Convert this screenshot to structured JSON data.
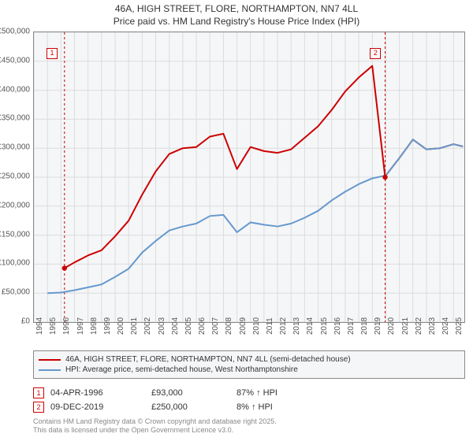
{
  "title": {
    "line1": "46A, HIGH STREET, FLORE, NORTHAMPTON, NN7 4LL",
    "line2": "Price paid vs. HM Land Registry's House Price Index (HPI)"
  },
  "chart": {
    "type": "line",
    "background_color": "#f5f6f8",
    "border_color": "#888888",
    "grid_color": "#dcdcdc",
    "y": {
      "min": 0,
      "max": 500000,
      "step": 50000,
      "tick_labels": [
        "£0",
        "£50,000",
        "£100,000",
        "£150,000",
        "£200,000",
        "£250,000",
        "£300,000",
        "£350,000",
        "£400,000",
        "£450,000",
        "£500,000"
      ],
      "label_fontsize": 10,
      "label_color": "#555555"
    },
    "x": {
      "min": 1994,
      "max": 2025.8,
      "years": [
        1994,
        1995,
        1996,
        1997,
        1998,
        1999,
        2000,
        2001,
        2002,
        2003,
        2004,
        2005,
        2006,
        2007,
        2008,
        2009,
        2010,
        2011,
        2012,
        2013,
        2014,
        2015,
        2016,
        2017,
        2018,
        2019,
        2020,
        2021,
        2022,
        2023,
        2024,
        2025
      ],
      "label_fontsize": 10,
      "label_color": "#555555"
    },
    "series": [
      {
        "name": "property",
        "label": "46A, HIGH STREET, FLORE, NORTHAMPTON, NN7 4LL (semi-detached house)",
        "color": "#cc0000",
        "line_width": 2,
        "data": [
          [
            1996.26,
            93000
          ],
          [
            1997,
            103000
          ],
          [
            1998,
            115000
          ],
          [
            1999,
            124000
          ],
          [
            2000,
            148000
          ],
          [
            2001,
            175000
          ],
          [
            2002,
            220000
          ],
          [
            2003,
            260000
          ],
          [
            2004,
            290000
          ],
          [
            2005,
            300000
          ],
          [
            2006,
            302000
          ],
          [
            2007,
            320000
          ],
          [
            2008,
            325000
          ],
          [
            2009,
            264000
          ],
          [
            2010,
            302000
          ],
          [
            2011,
            295000
          ],
          [
            2012,
            292000
          ],
          [
            2013,
            298000
          ],
          [
            2014,
            318000
          ],
          [
            2015,
            338000
          ],
          [
            2016,
            366000
          ],
          [
            2017,
            398000
          ],
          [
            2018,
            422000
          ],
          [
            2019,
            442000
          ],
          [
            2019.95,
            250000
          ],
          [
            2020,
            253000
          ],
          [
            2021,
            283000
          ],
          [
            2022,
            315000
          ],
          [
            2023,
            298000
          ],
          [
            2024,
            300000
          ],
          [
            2025,
            307000
          ],
          [
            2025.7,
            303000
          ]
        ]
      },
      {
        "name": "hpi",
        "label": "HPI: Average price, semi-detached house, West Northamptonshire",
        "color": "#6699cc",
        "line_width": 2,
        "data": [
          [
            1995,
            50000
          ],
          [
            1996,
            51000
          ],
          [
            1997,
            55000
          ],
          [
            1998,
            60000
          ],
          [
            1999,
            65000
          ],
          [
            2000,
            78000
          ],
          [
            2001,
            92000
          ],
          [
            2002,
            120000
          ],
          [
            2003,
            140000
          ],
          [
            2004,
            158000
          ],
          [
            2005,
            165000
          ],
          [
            2006,
            170000
          ],
          [
            2007,
            183000
          ],
          [
            2008,
            185000
          ],
          [
            2009,
            155000
          ],
          [
            2010,
            172000
          ],
          [
            2011,
            168000
          ],
          [
            2012,
            165000
          ],
          [
            2013,
            170000
          ],
          [
            2014,
            180000
          ],
          [
            2015,
            192000
          ],
          [
            2016,
            210000
          ],
          [
            2017,
            225000
          ],
          [
            2018,
            238000
          ],
          [
            2019,
            248000
          ],
          [
            2020,
            253000
          ],
          [
            2021,
            283000
          ],
          [
            2022,
            315000
          ],
          [
            2023,
            298000
          ],
          [
            2024,
            300000
          ],
          [
            2025,
            307000
          ],
          [
            2025.7,
            303000
          ]
        ]
      }
    ],
    "markers": [
      {
        "id": "1",
        "x": 1996.26,
        "y": 93000,
        "label_x": 1995.4,
        "label_y": 462000,
        "color": "#cc0000",
        "vline_dash": "3,3"
      },
      {
        "id": "2",
        "x": 2019.95,
        "y": 250000,
        "label_x": 2019.3,
        "label_y": 462000,
        "color": "#cc0000",
        "vline_dash": "3,3"
      }
    ],
    "legend": {
      "border_color": "#888888",
      "background_color": "#f5f6f8",
      "fontsize": 10
    }
  },
  "transactions": [
    {
      "id": "1",
      "date": "04-APR-1996",
      "price": "£93,000",
      "delta": "87% ↑ HPI"
    },
    {
      "id": "2",
      "date": "09-DEC-2019",
      "price": "£250,000",
      "delta": "8% ↑ HPI"
    }
  ],
  "attribution": {
    "line1": "Contains HM Land Registry data © Crown copyright and database right 2025.",
    "line2": "This data is licensed under the Open Government Licence v3.0."
  }
}
